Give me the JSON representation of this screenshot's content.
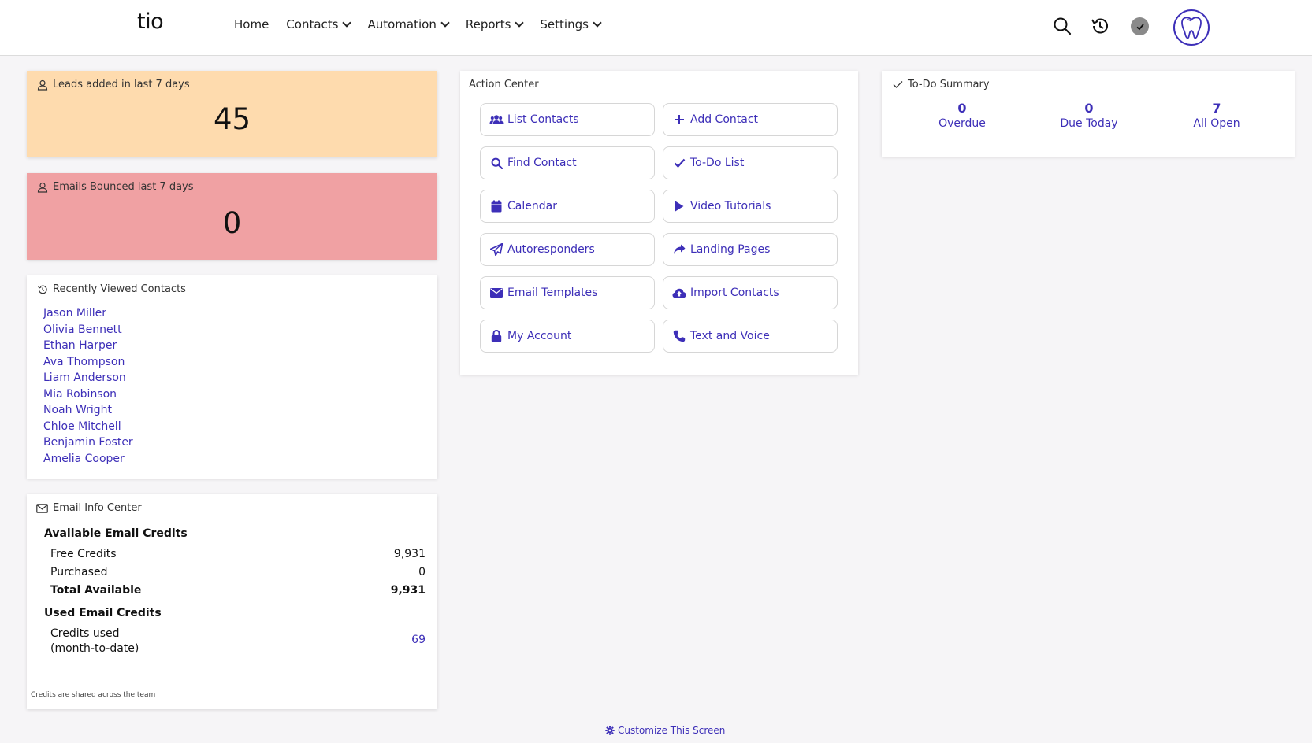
{
  "header": {
    "logo": "tio",
    "nav": [
      {
        "label": "Home"
      },
      {
        "label": "Contacts"
      },
      {
        "label": "Automation"
      },
      {
        "label": "Reports"
      },
      {
        "label": "Settings"
      }
    ],
    "icons": [
      "search-icon",
      "history-icon",
      "status-check-icon",
      "tooth-avatar-icon"
    ]
  },
  "leads_card": {
    "title": "Leads added in last 7 days",
    "value": "45",
    "color": "#fedbae"
  },
  "bounced_card": {
    "title": "Emails Bounced last 7 days",
    "value": "0",
    "color": "#f0a1a3"
  },
  "recent": {
    "title": "Recently Viewed Contacts",
    "contacts": [
      "Jason Miller",
      "Olivia Bennett",
      "Ethan Harper",
      "Ava Thompson",
      "Liam Anderson",
      "Mia Robinson",
      "Noah Wright",
      "Chloe Mitchell",
      "Benjamin Foster",
      "Amelia Cooper"
    ]
  },
  "email_info": {
    "title": "Email Info Center",
    "available_heading": "Available Email Credits",
    "free_label": "Free Credits",
    "free_value": "9,931",
    "purchased_label": "Purchased",
    "purchased_value": "0",
    "total_label": "Total Available",
    "total_value": "9,931",
    "used_heading": "Used Email Credits",
    "used_label_1": "Credits used",
    "used_label_2": "(month-to-date)",
    "used_value": "69",
    "note": "Credits are shared across the team"
  },
  "action_center": {
    "title": "Action Center",
    "buttons": [
      {
        "label": "List Contacts",
        "icon": "users-icon"
      },
      {
        "label": "Add Contact",
        "icon": "plus-icon"
      },
      {
        "label": "Find Contact",
        "icon": "search-icon"
      },
      {
        "label": "To-Do List",
        "icon": "check-icon"
      },
      {
        "label": "Calendar",
        "icon": "calendar-icon"
      },
      {
        "label": "Video Tutorials",
        "icon": "play-icon"
      },
      {
        "label": "Autoresponders",
        "icon": "paper-plane-icon"
      },
      {
        "label": "Landing Pages",
        "icon": "share-icon"
      },
      {
        "label": "Email Templates",
        "icon": "envelope-icon"
      },
      {
        "label": "Import Contacts",
        "icon": "cloud-upload-icon"
      },
      {
        "label": "My Account",
        "icon": "lock-icon"
      },
      {
        "label": "Text and Voice",
        "icon": "phone-icon"
      }
    ]
  },
  "todo": {
    "title": "To-Do Summary",
    "items": [
      {
        "count": "0",
        "label": "Overdue"
      },
      {
        "count": "0",
        "label": "Due Today"
      },
      {
        "count": "7",
        "label": "All Open"
      }
    ]
  },
  "footer": {
    "customize": "Customize This Screen"
  },
  "colors": {
    "accent": "#3d2fb8",
    "leads_bg": "#fedbae",
    "bounced_bg": "#f0a1a3"
  }
}
